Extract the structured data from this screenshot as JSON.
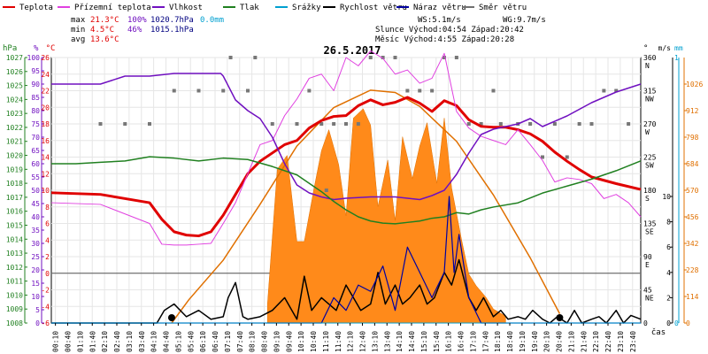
{
  "legend": [
    {
      "label": "Teplota",
      "color": "#e00000"
    },
    {
      "label": "Přízemní teplota",
      "color": "#e040e0"
    },
    {
      "label": "Vlhkost",
      "color": "#7010c0"
    },
    {
      "label": "Tlak",
      "color": "#208020"
    },
    {
      "label": "Srážky",
      "color": "#00a0d0"
    },
    {
      "label": "Rychlost větru",
      "color": "#000000"
    },
    {
      "label": "Náraz větru",
      "color": "#0000a0"
    },
    {
      "label": "Směr větru",
      "color": "#707070"
    }
  ],
  "stats": {
    "max_label": "max",
    "max_temp": "21.3°C",
    "max_hum": "100%",
    "max_press": "1020.7hPa",
    "max_rain": "0.0mm",
    "min_label": "min",
    "min_temp": "4.5°C",
    "min_hum": "46%",
    "min_press": "1015.1hPa",
    "avg_label": "avg",
    "avg_temp": "13.6°C",
    "ws": "WS:5.1m/s",
    "wg": "WG:9.7m/s",
    "sun": "Slunce Východ:04:54  Západ:20:42",
    "moon": "Měsíc  Východ:4:55   Západ:20:28"
  },
  "chart_data": {
    "type": "line",
    "title": "26.5.2017",
    "xlabel": "čas",
    "x_ticks": [
      "00:10",
      "00:40",
      "01:10",
      "01:40",
      "02:10",
      "02:40",
      "03:10",
      "03:40",
      "04:10",
      "04:40",
      "05:10",
      "05:40",
      "06:10",
      "06:40",
      "07:10",
      "07:40",
      "08:10",
      "08:40",
      "09:10",
      "09:40",
      "10:10",
      "10:40",
      "11:10",
      "11:40",
      "12:10",
      "12:40",
      "13:10",
      "13:40",
      "14:10",
      "14:40",
      "15:10",
      "15:40",
      "16:10",
      "16:40",
      "17:10",
      "17:40",
      "18:10",
      "18:40",
      "19:10",
      "19:40",
      "20:10",
      "20:40",
      "21:10",
      "21:40",
      "22:10",
      "22:40",
      "23:10",
      "23:40"
    ],
    "axes": {
      "hPa": {
        "label": "hPa",
        "color": "#208020",
        "ticks": [
          1008,
          1009,
          1010,
          1011,
          1012,
          1013,
          1014,
          1015,
          1016,
          1017,
          1018,
          1019,
          1020,
          1021,
          1022,
          1023,
          1024,
          1025,
          1026,
          1027
        ]
      },
      "pct": {
        "label": "%",
        "color": "#7010c0",
        "ticks": [
          0,
          5,
          10,
          15,
          20,
          25,
          30,
          35,
          40,
          45,
          50,
          55,
          60,
          65,
          70,
          75,
          80,
          85,
          90,
          95,
          100
        ]
      },
      "celsius": {
        "label": "°C",
        "color": "#e00000",
        "ticks": [
          -6,
          -4,
          -2,
          0,
          2,
          4,
          6,
          8,
          10,
          12,
          14,
          16,
          18,
          20,
          22,
          24,
          26
        ]
      },
      "dir": {
        "label": "°",
        "ticks": [
          {
            "deg": "360",
            "dir": "N"
          },
          {
            "deg": "315",
            "dir": "NW"
          },
          {
            "deg": "270",
            "dir": "W"
          },
          {
            "deg": "225",
            "dir": "SW"
          },
          {
            "deg": "180",
            "dir": "S"
          },
          {
            "deg": "135",
            "dir": "SE"
          },
          {
            "deg": "90",
            "dir": "E"
          },
          {
            "deg": "45",
            "dir": "NE"
          },
          {
            "deg": "0",
            "dir": ""
          }
        ]
      },
      "wind": {
        "label": "m/s",
        "ticks": [
          0,
          2,
          4,
          6,
          8,
          10
        ]
      },
      "rain": {
        "label": "mm",
        "color": "#00a0d0",
        "ticks": [
          0,
          1
        ]
      },
      "solar": {
        "label": "",
        "color": "#e07000",
        "ticks": [
          0,
          114,
          228,
          342,
          456,
          570,
          684,
          798,
          912,
          1026
        ]
      }
    },
    "series": [
      {
        "name": "Teplota",
        "color": "#e00000",
        "x": [
          0,
          2,
          4,
          4.5,
          5,
          5.5,
          6,
          6.5,
          7,
          7.5,
          8,
          8.5,
          9,
          9.5,
          10,
          10.5,
          11,
          11.5,
          12,
          12.5,
          13,
          13.5,
          14,
          14.5,
          15,
          15.5,
          16,
          16.5,
          17,
          17.5,
          18,
          18.5,
          19,
          19.5,
          20,
          20.5,
          21,
          21.5,
          22,
          23,
          24
        ],
        "y": [
          9.7,
          9.5,
          8.5,
          6.5,
          5,
          4.6,
          4.5,
          5,
          7,
          9.5,
          12,
          13.5,
          14.5,
          15.5,
          16,
          17.5,
          18.4,
          18.9,
          19,
          20.2,
          20.9,
          20.3,
          20.6,
          21.2,
          20.5,
          19.5,
          20.8,
          20.2,
          18.5,
          17.7,
          17.6,
          17.6,
          17.3,
          16.8,
          15.9,
          14.6,
          13.5,
          12.5,
          11.6,
          10.8,
          10.1
        ]
      },
      {
        "name": "Přízemní teplota",
        "color": "#e040e0",
        "x": [
          0,
          2,
          4,
          4.5,
          5,
          5.5,
          6,
          6.5,
          7,
          7.5,
          8,
          8.5,
          9,
          9.5,
          10,
          10.5,
          11,
          11.5,
          12,
          12.5,
          13,
          13.5,
          14,
          14.5,
          15,
          15.5,
          16,
          16.5,
          17,
          17.5,
          18,
          18.5,
          19,
          19.5,
          20,
          20.5,
          21,
          21.5,
          22,
          22.5,
          23,
          23.5,
          24
        ],
        "y": [
          8.5,
          8.3,
          6,
          3.5,
          3.4,
          3.4,
          3.5,
          3.6,
          6,
          8.5,
          12,
          15.5,
          16,
          19,
          21,
          23.5,
          24,
          22,
          26,
          25,
          26.8,
          25.9,
          24,
          24.5,
          22.9,
          23.5,
          26.5,
          19.5,
          17.5,
          16.5,
          16,
          15.5,
          17.3,
          15.5,
          13.6,
          11,
          11.5,
          11.3,
          10.8,
          9,
          9.5,
          8.5,
          6.8
        ]
      },
      {
        "name": "Vlhkost",
        "color": "#7010c0",
        "x": [
          0,
          2,
          3,
          4,
          5,
          6,
          6.9,
          7,
          7.5,
          8,
          8.5,
          9,
          9.5,
          10,
          10.5,
          11,
          11.5,
          12,
          13,
          14,
          15,
          15.5,
          16,
          16.5,
          17,
          17.5,
          18,
          19,
          19.5,
          20,
          21,
          22,
          23,
          24
        ],
        "y": [
          90,
          90,
          93,
          93,
          94,
          94,
          94,
          93,
          84,
          80,
          77,
          70,
          60,
          52,
          49,
          47.5,
          46.5,
          47,
          47.5,
          47.5,
          46.5,
          48,
          50,
          56,
          64,
          71,
          73,
          75,
          77,
          74,
          78,
          83,
          87,
          90
        ]
      },
      {
        "name": "Tlak",
        "color": "#208020",
        "x": [
          0,
          1,
          2,
          3,
          4,
          5,
          6,
          7,
          8,
          9,
          10,
          10.5,
          11,
          11.5,
          12,
          12.5,
          13,
          13.5,
          14,
          14.5,
          15,
          15.5,
          16,
          16.5,
          17,
          17.5,
          18,
          19,
          20,
          21,
          22,
          23,
          24
        ],
        "y": [
          1019.4,
          1019.4,
          1019.5,
          1019.6,
          1019.9,
          1019.8,
          1019.6,
          1019.8,
          1019.7,
          1019.2,
          1018.6,
          1018,
          1017.4,
          1016.7,
          1016.1,
          1015.6,
          1015.3,
          1015.15,
          1015.1,
          1015.2,
          1015.3,
          1015.5,
          1015.6,
          1015.9,
          1015.8,
          1016.1,
          1016.3,
          1016.6,
          1017.3,
          1017.8,
          1018.3,
          1018.9,
          1019.6
        ]
      },
      {
        "name": "Rychlost větru",
        "color": "#000000",
        "x": [
          0,
          4.3,
          4.6,
          5,
          5.5,
          6,
          6.5,
          7,
          7.2,
          7.5,
          7.8,
          8,
          8.5,
          9,
          9.5,
          10,
          10.3,
          10.6,
          11,
          11.3,
          11.6,
          12,
          12.3,
          12.6,
          13,
          13.3,
          13.6,
          14,
          14.3,
          14.6,
          15,
          15.3,
          15.6,
          16,
          16.3,
          16.6,
          17,
          17.3,
          17.6,
          18,
          18.3,
          18.6,
          19,
          19.3,
          19.6,
          20,
          20.3,
          20.6,
          21,
          21.3,
          21.6,
          22,
          22.3,
          22.6,
          23,
          23.3,
          23.6,
          24
        ],
        "y": [
          0,
          0,
          1,
          1.5,
          0.5,
          1,
          0.3,
          0.5,
          2,
          3.2,
          0.5,
          0.3,
          0.5,
          1,
          2,
          0.3,
          3.7,
          1,
          2,
          1.5,
          1,
          3,
          2,
          1,
          1.5,
          4,
          1.5,
          3,
          1.5,
          2,
          3,
          1.5,
          2,
          4,
          3,
          5,
          2,
          1,
          2,
          0.5,
          1,
          0.3,
          0.5,
          0.3,
          1,
          0.3,
          0,
          0.5,
          0,
          1,
          0,
          0.3,
          0.5,
          0,
          1,
          0,
          0.6,
          0.3
        ]
      },
      {
        "name": "Náraz větru",
        "color": "#0000a0",
        "x": [
          0,
          11,
          11.5,
          12,
          12.5,
          13,
          13.5,
          14,
          14.5,
          15,
          15.5,
          16,
          16.2,
          16.4,
          16.6,
          17,
          17.5,
          24
        ],
        "y": [
          0,
          0,
          2,
          1,
          3,
          2.5,
          4.5,
          1,
          6,
          4,
          2,
          4,
          10,
          4,
          7,
          2,
          0,
          0
        ]
      },
      {
        "name": "Srážky",
        "color": "#00a0d0",
        "x": [
          0,
          24
        ],
        "y": [
          0,
          0
        ]
      }
    ],
    "solar": {
      "name": "Solar",
      "color": "#e07000",
      "x": [
        4.9,
        5.6,
        7,
        8.5,
        10,
        11.5,
        13,
        14,
        15,
        16.5,
        18,
        19.5,
        20.7
      ],
      "y": [
        0,
        100,
        270,
        510,
        760,
        925,
        1000,
        990,
        930,
        780,
        550,
        280,
        40
      ]
    },
    "solar_fill": {
      "x": [
        8.8,
        9.2,
        9.6,
        10,
        10.3,
        10.7,
        11,
        11.3,
        11.7,
        12,
        12.3,
        12.7,
        13,
        13.3,
        13.7,
        14,
        14.3,
        14.7,
        15,
        15.3,
        15.7,
        16,
        16.3,
        16.7,
        17,
        17.3,
        17.7,
        18,
        18.5
      ],
      "y": [
        80,
        660,
        720,
        350,
        350,
        580,
        740,
        830,
        680,
        460,
        880,
        920,
        850,
        500,
        700,
        440,
        800,
        620,
        760,
        860,
        600,
        880,
        580,
        360,
        210,
        160,
        110,
        60,
        30
      ]
    },
    "wind_dir": {
      "x": [
        2,
        3,
        4,
        5,
        6,
        7,
        7.3,
        8,
        8.3,
        9,
        10,
        10.5,
        11,
        11.2,
        11.5,
        12,
        12.5,
        13,
        13.5,
        14,
        14.5,
        15,
        15.5,
        16,
        16.5,
        17,
        17.5,
        18,
        18.3,
        19,
        19.5,
        20,
        20.5,
        21,
        21.5,
        22,
        22.5,
        23,
        23.5
      ],
      "deg": [
        270,
        270,
        270,
        315,
        315,
        315,
        360,
        315,
        360,
        270,
        270,
        315,
        270,
        180,
        270,
        270,
        270,
        360,
        360,
        360,
        315,
        315,
        315,
        360,
        360,
        270,
        270,
        315,
        270,
        270,
        270,
        225,
        270,
        225,
        270,
        270,
        315,
        315,
        270
      ]
    },
    "markers": {
      "sunrise": "04:54",
      "sunset": "20:42"
    }
  }
}
